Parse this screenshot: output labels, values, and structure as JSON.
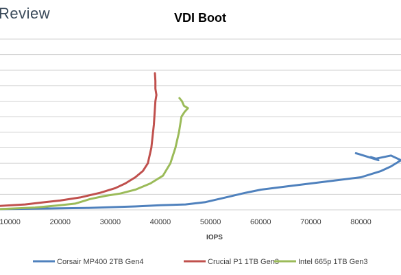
{
  "brand": "Review",
  "chart_data": {
    "type": "line",
    "title": "VDI Boot",
    "xlabel": "IOPS",
    "ylabel": "",
    "x_ticks": [
      10000,
      20000,
      30000,
      40000,
      50000,
      60000,
      70000,
      80000
    ],
    "xlim": [
      8000,
      88000
    ],
    "ylim": [
      0,
      11
    ],
    "grid": true,
    "legend_position": "bottom",
    "series": [
      {
        "name": "Corsair MP400 2TB Gen4",
        "color": "#4f81bd",
        "points": [
          [
            8000,
            0.05
          ],
          [
            15000,
            0.08
          ],
          [
            25000,
            0.12
          ],
          [
            35000,
            0.22
          ],
          [
            40000,
            0.3
          ],
          [
            45000,
            0.35
          ],
          [
            49000,
            0.5
          ],
          [
            53000,
            0.8
          ],
          [
            57000,
            1.1
          ],
          [
            60000,
            1.3
          ],
          [
            65000,
            1.5
          ],
          [
            70000,
            1.7
          ],
          [
            75000,
            1.9
          ],
          [
            80000,
            2.1
          ],
          [
            84000,
            2.5
          ],
          [
            86000,
            2.8
          ],
          [
            88000,
            3.2
          ],
          [
            86000,
            3.5
          ],
          [
            83000,
            3.3
          ],
          [
            82000,
            3.4
          ],
          [
            83500,
            3.2
          ],
          [
            80000,
            3.55
          ],
          [
            79000,
            3.65
          ]
        ]
      },
      {
        "name": "Crucial P1 1TB Gen3",
        "color": "#c0504d",
        "points": [
          [
            8000,
            0.25
          ],
          [
            13000,
            0.35
          ],
          [
            17000,
            0.5
          ],
          [
            20000,
            0.6
          ],
          [
            24000,
            0.8
          ],
          [
            28000,
            1.1
          ],
          [
            31000,
            1.4
          ],
          [
            33000,
            1.7
          ],
          [
            35000,
            2.1
          ],
          [
            36500,
            2.5
          ],
          [
            37500,
            3.0
          ],
          [
            38200,
            4.0
          ],
          [
            38700,
            5.5
          ],
          [
            39000,
            7.0
          ],
          [
            39200,
            7.4
          ],
          [
            39000,
            7.8
          ],
          [
            39000,
            8.3
          ],
          [
            38900,
            8.8
          ]
        ]
      },
      {
        "name": "Intel 665p 1TB Gen3",
        "color": "#9bbb59",
        "points": [
          [
            8000,
            0.05
          ],
          [
            15000,
            0.15
          ],
          [
            20000,
            0.3
          ],
          [
            23000,
            0.4
          ],
          [
            26000,
            0.7
          ],
          [
            29000,
            0.9
          ],
          [
            32000,
            1.05
          ],
          [
            35000,
            1.3
          ],
          [
            38000,
            1.7
          ],
          [
            40500,
            2.2
          ],
          [
            42000,
            3.0
          ],
          [
            43000,
            4.0
          ],
          [
            43700,
            5.0
          ],
          [
            44200,
            6.0
          ],
          [
            44800,
            6.3
          ],
          [
            45500,
            6.55
          ],
          [
            44700,
            6.7
          ],
          [
            44300,
            7.0
          ],
          [
            43800,
            7.2
          ]
        ]
      }
    ]
  }
}
